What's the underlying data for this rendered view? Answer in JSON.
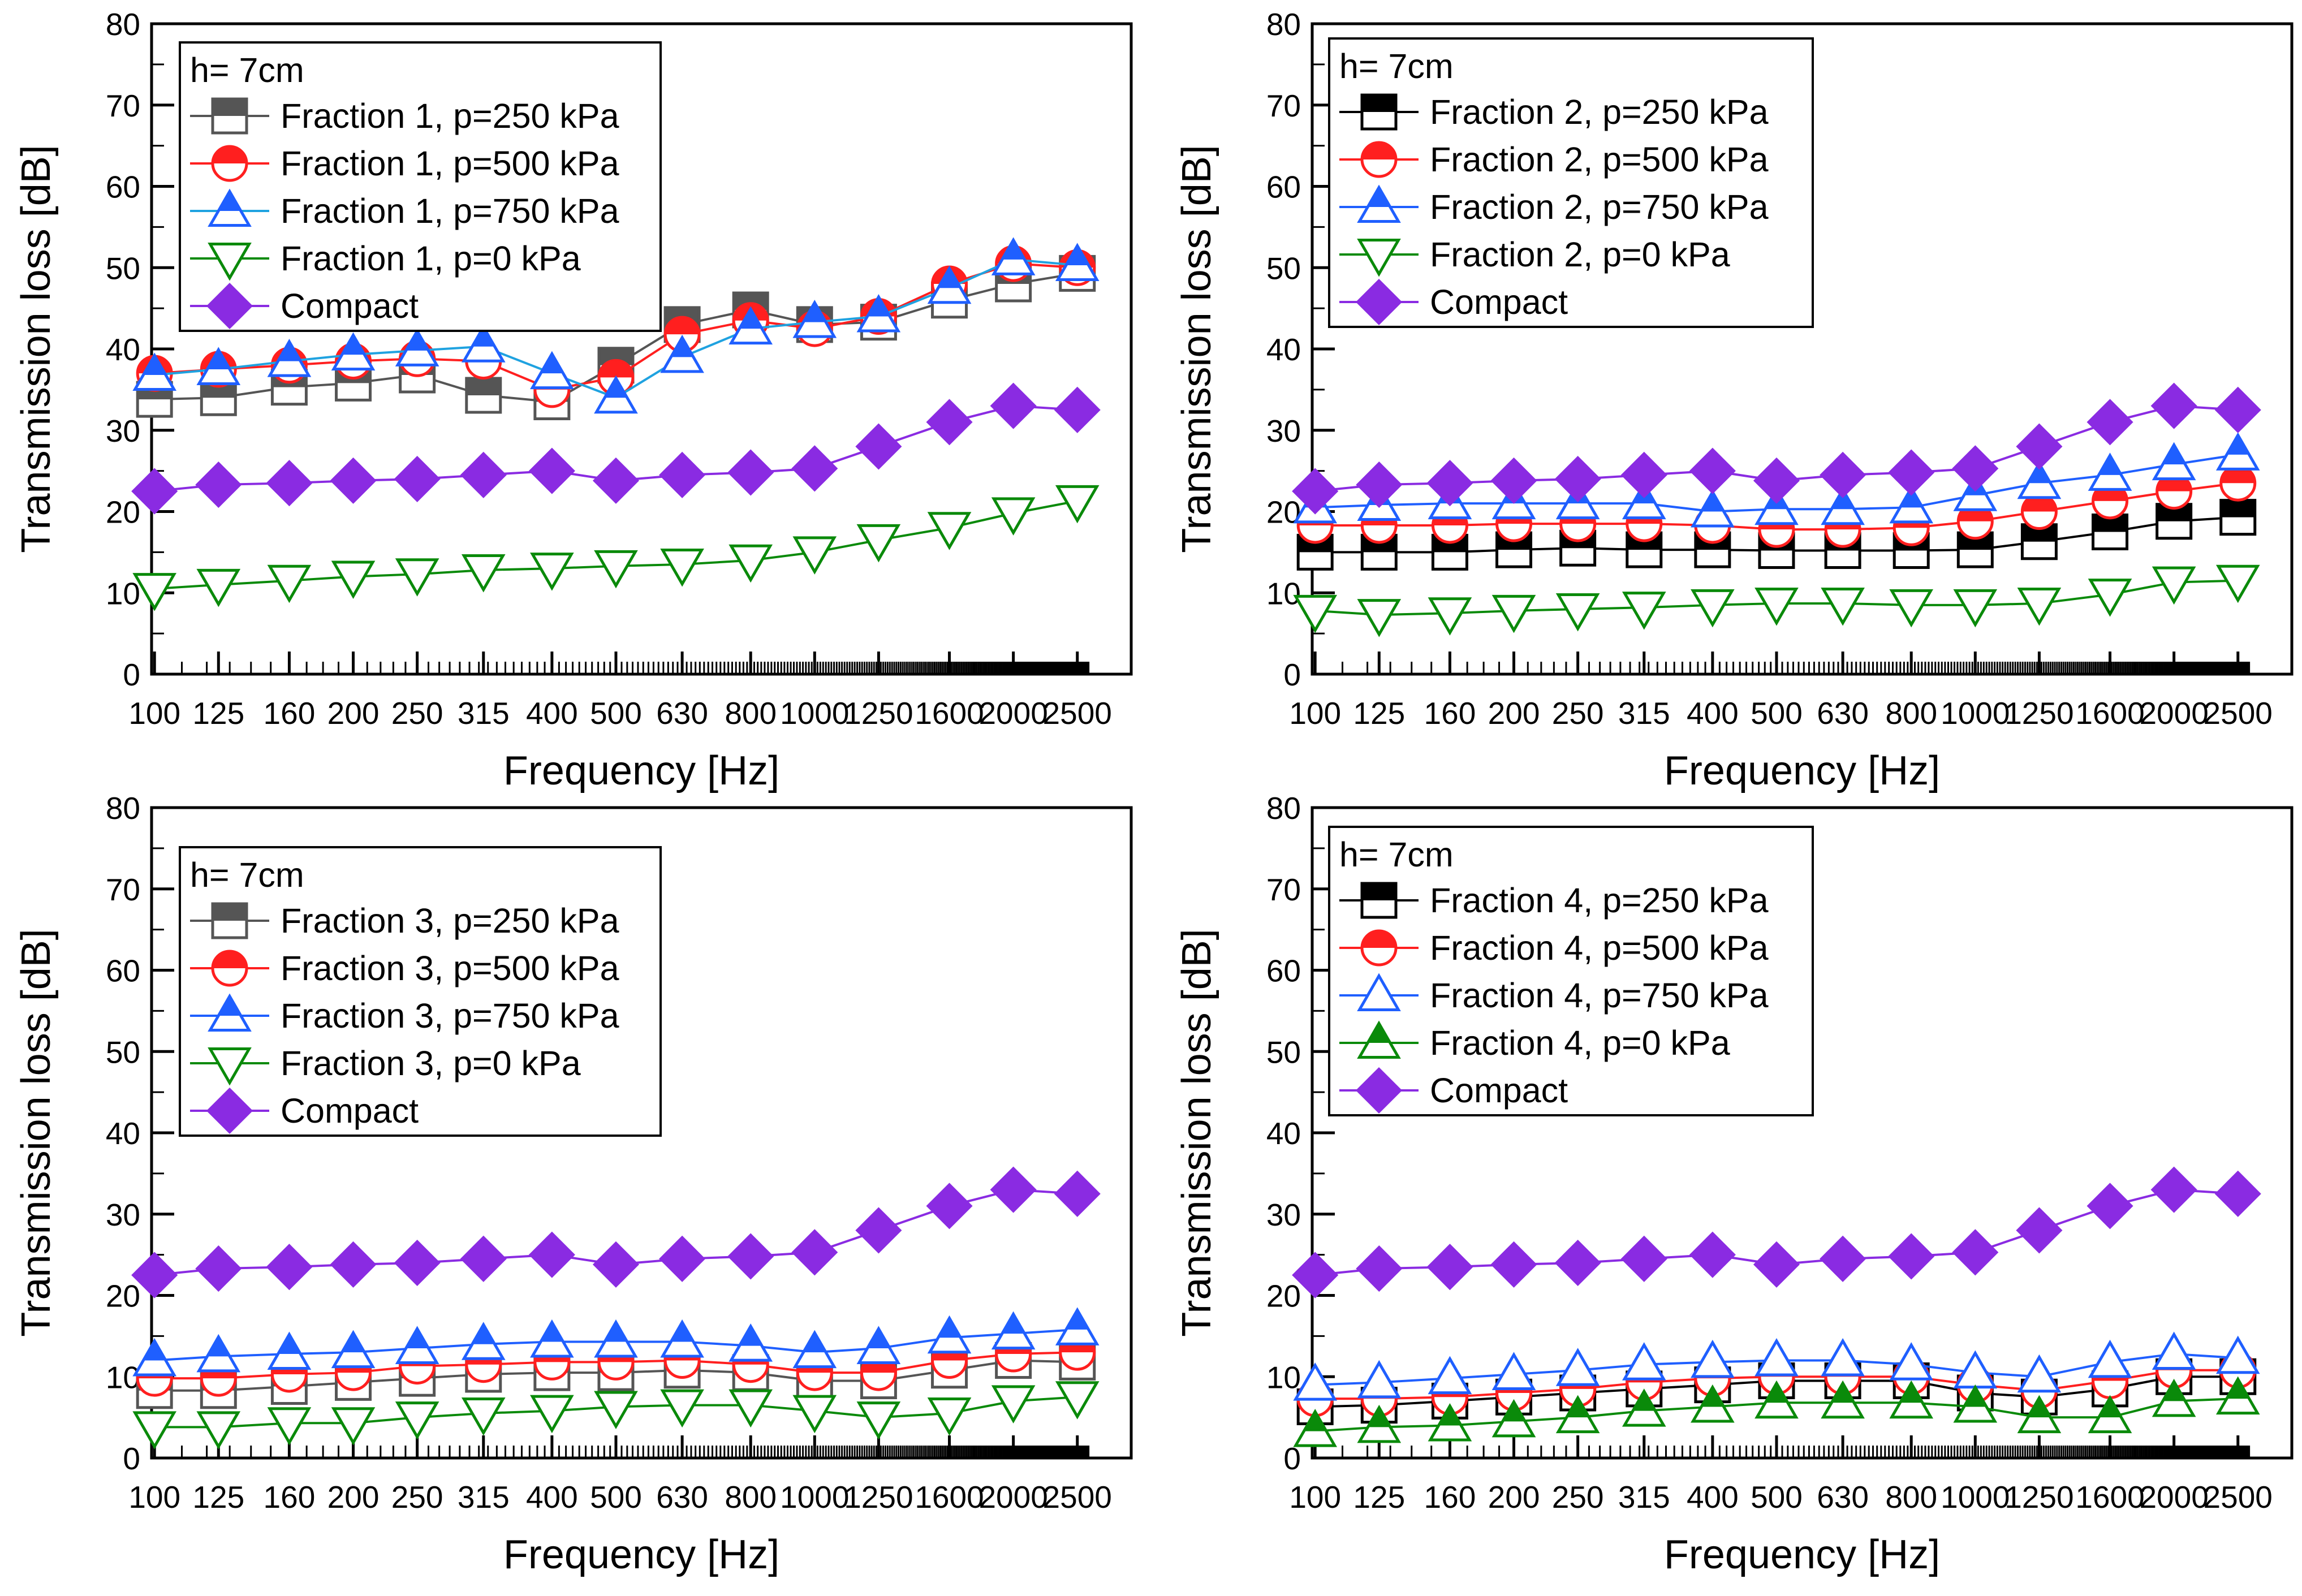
{
  "chart_data": [
    {
      "type": "line",
      "panel": "top-left",
      "xlabel": "Frequency [Hz]",
      "ylabel": "Transmission loss [dB]",
      "x_scale": "log",
      "categories": [
        "100",
        "125",
        "160",
        "200",
        "250",
        "315",
        "400",
        "500",
        "630",
        "800",
        "1000",
        "1250",
        "1600",
        "2000",
        "2500"
      ],
      "ylim": [
        0,
        80
      ],
      "yticks": [
        "0",
        "10",
        "20",
        "30",
        "40",
        "50",
        "60",
        "70",
        "80"
      ],
      "legend": {
        "position": "top-left",
        "title": "h= 7cm"
      },
      "series": [
        {
          "name": "Fraction 1, p=250 kPa",
          "color": "#555555",
          "marker": "square",
          "fill": "half",
          "values": [
            33.8,
            34.0,
            35.3,
            35.8,
            36.8,
            34.3,
            33.5,
            38.0,
            43.0,
            44.8,
            43.0,
            43.3,
            46.0,
            48.0,
            49.3
          ]
        },
        {
          "name": "Fraction 1, p=500 kPa",
          "color": "#ff1f1f",
          "marker": "circle",
          "fill": "half",
          "values": [
            37.0,
            37.5,
            38.0,
            38.5,
            38.8,
            38.5,
            35.0,
            36.5,
            41.8,
            43.5,
            42.5,
            44.0,
            48.0,
            50.5,
            50.0
          ]
        },
        {
          "name": "Fraction 1, p=750 kPa",
          "color": "#1f5fff",
          "marker": "triangle-up",
          "fill": "half",
          "line_color": "#1fa2e0",
          "values": [
            36.8,
            37.5,
            38.5,
            39.3,
            39.8,
            40.3,
            37.0,
            34.0,
            39.0,
            42.5,
            43.3,
            44.0,
            47.5,
            51.0,
            50.3
          ]
        },
        {
          "name": "Fraction 1, p=0 kPa",
          "color": "#0a8a0a",
          "marker": "triangle-down",
          "fill": "none",
          "values": [
            10.5,
            11.0,
            11.5,
            12.0,
            12.3,
            12.8,
            13.0,
            13.3,
            13.5,
            14.0,
            15.0,
            16.5,
            18.0,
            19.8,
            21.3
          ]
        },
        {
          "name": "Compact",
          "color": "#8a2be2",
          "marker": "diamond",
          "fill": "full",
          "values": [
            22.5,
            23.3,
            23.5,
            23.8,
            24.0,
            24.5,
            25.0,
            23.8,
            24.5,
            24.8,
            25.3,
            28.0,
            31.0,
            33.0,
            32.5
          ]
        }
      ]
    },
    {
      "type": "line",
      "panel": "top-right",
      "xlabel": "Frequency [Hz]",
      "ylabel": "Transmission loss [dB]",
      "x_scale": "log",
      "categories": [
        "100",
        "125",
        "160",
        "200",
        "250",
        "315",
        "400",
        "500",
        "630",
        "800",
        "1000",
        "1250",
        "1600",
        "2000",
        "2500"
      ],
      "ylim": [
        0,
        80
      ],
      "yticks": [
        "0",
        "10",
        "20",
        "30",
        "40",
        "50",
        "60",
        "70",
        "80"
      ],
      "legend": {
        "position": "top-left",
        "title": "h= 7cm"
      },
      "series": [
        {
          "name": "Fraction 2, p=250 kPa",
          "color": "#000000",
          "marker": "square",
          "fill": "half",
          "values": [
            15.0,
            15.0,
            15.0,
            15.3,
            15.5,
            15.3,
            15.3,
            15.2,
            15.2,
            15.2,
            15.3,
            16.3,
            17.5,
            18.8,
            19.3
          ]
        },
        {
          "name": "Fraction 2, p=500 kPa",
          "color": "#ff1f1f",
          "marker": "circle",
          "fill": "half",
          "values": [
            18.3,
            18.3,
            18.3,
            18.5,
            18.5,
            18.5,
            18.3,
            17.8,
            17.8,
            18.0,
            18.8,
            20.0,
            21.3,
            22.5,
            23.5
          ]
        },
        {
          "name": "Fraction 2, p=750 kPa",
          "color": "#1f5fff",
          "marker": "triangle-up",
          "fill": "half",
          "values": [
            20.5,
            20.8,
            21.0,
            21.0,
            21.0,
            21.0,
            20.0,
            20.3,
            20.3,
            20.5,
            22.0,
            23.5,
            24.5,
            25.8,
            27.0
          ]
        },
        {
          "name": "Fraction 2, p=0 kPa",
          "color": "#0a8a0a",
          "marker": "triangle-down",
          "fill": "none",
          "values": [
            7.8,
            7.3,
            7.5,
            7.8,
            8.0,
            8.2,
            8.5,
            8.7,
            8.7,
            8.5,
            8.5,
            8.7,
            9.8,
            11.3,
            11.5
          ]
        },
        {
          "name": "Compact",
          "color": "#8a2be2",
          "marker": "diamond",
          "fill": "full",
          "values": [
            22.5,
            23.3,
            23.5,
            23.8,
            24.0,
            24.5,
            25.0,
            23.8,
            24.5,
            24.8,
            25.3,
            28.0,
            31.0,
            33.0,
            32.5
          ]
        }
      ]
    },
    {
      "type": "line",
      "panel": "bottom-left",
      "xlabel": "Frequency [Hz]",
      "ylabel": "Transmission loss [dB]",
      "x_scale": "log",
      "categories": [
        "100",
        "125",
        "160",
        "200",
        "250",
        "315",
        "400",
        "500",
        "630",
        "800",
        "1000",
        "1250",
        "1600",
        "2000",
        "2500"
      ],
      "ylim": [
        0,
        80
      ],
      "yticks": [
        "0",
        "10",
        "20",
        "30",
        "40",
        "50",
        "60",
        "70",
        "80"
      ],
      "legend": {
        "position": "top-left",
        "title": "h= 7cm"
      },
      "series": [
        {
          "name": "Fraction 3, p=250 kPa",
          "color": "#555555",
          "marker": "square",
          "fill": "half",
          "values": [
            8.3,
            8.3,
            8.8,
            9.3,
            9.8,
            10.3,
            10.5,
            10.5,
            10.8,
            10.5,
            9.5,
            9.5,
            10.8,
            12.0,
            11.8
          ]
        },
        {
          "name": "Fraction 3, p=500 kPa",
          "color": "#ff1f1f",
          "marker": "circle",
          "fill": "half",
          "values": [
            9.8,
            9.8,
            10.3,
            10.5,
            11.3,
            11.5,
            11.8,
            11.8,
            12.0,
            11.5,
            10.5,
            10.5,
            12.0,
            12.8,
            13.0
          ]
        },
        {
          "name": "Fraction 3, p=750 kPa",
          "color": "#1f5fff",
          "marker": "triangle-up",
          "fill": "half",
          "values": [
            12.0,
            12.5,
            12.8,
            13.0,
            13.5,
            14.0,
            14.3,
            14.3,
            14.3,
            13.8,
            13.0,
            13.5,
            14.8,
            15.3,
            15.8
          ]
        },
        {
          "name": "Fraction 3, p=0 kPa",
          "color": "#0a8a0a",
          "marker": "triangle-down",
          "fill": "none",
          "values": [
            3.8,
            3.8,
            4.3,
            4.3,
            5.0,
            5.5,
            5.8,
            6.3,
            6.5,
            6.5,
            5.8,
            5.0,
            5.5,
            7.0,
            7.5
          ]
        },
        {
          "name": "Compact",
          "color": "#8a2be2",
          "marker": "diamond",
          "fill": "full",
          "values": [
            22.5,
            23.3,
            23.5,
            23.8,
            24.0,
            24.5,
            25.0,
            23.8,
            24.5,
            24.8,
            25.3,
            28.0,
            31.0,
            33.0,
            32.5
          ]
        }
      ]
    },
    {
      "type": "line",
      "panel": "bottom-right",
      "xlabel": "Frequency [Hz]",
      "ylabel": "Transmission loss [dB]",
      "x_scale": "log",
      "categories": [
        "100",
        "125",
        "160",
        "200",
        "250",
        "315",
        "400",
        "500",
        "630",
        "800",
        "1000",
        "1250",
        "1600",
        "2000",
        "2500"
      ],
      "ylim": [
        0,
        80
      ],
      "yticks": [
        "0",
        "10",
        "20",
        "30",
        "40",
        "50",
        "60",
        "70",
        "80"
      ],
      "legend": {
        "position": "top-left",
        "title": "h= 7cm"
      },
      "series": [
        {
          "name": "Fraction 4, p=250 kPa",
          "color": "#000000",
          "marker": "square",
          "fill": "half",
          "values": [
            6.3,
            6.5,
            7.0,
            7.5,
            8.0,
            8.5,
            9.0,
            9.5,
            9.5,
            9.5,
            8.0,
            7.5,
            8.5,
            10.0,
            10.0
          ]
        },
        {
          "name": "Fraction 4, p=500 kPa",
          "color": "#ff1f1f",
          "marker": "circle",
          "fill": "half",
          "values": [
            7.3,
            7.3,
            7.5,
            8.0,
            8.5,
            9.3,
            9.8,
            10.0,
            10.0,
            10.0,
            9.0,
            8.3,
            9.5,
            10.8,
            10.8
          ]
        },
        {
          "name": "Fraction 4, p=750 kPa",
          "color": "#1f5fff",
          "marker": "triangle-up",
          "fill": "none",
          "values": [
            9.0,
            9.3,
            9.8,
            10.3,
            10.8,
            11.5,
            11.8,
            12.0,
            12.0,
            11.5,
            10.5,
            10.0,
            11.8,
            12.8,
            12.3
          ]
        },
        {
          "name": "Fraction 4, p=0 kPa",
          "color": "#0a8a0a",
          "marker": "triangle-up",
          "fill": "half",
          "values": [
            3.3,
            3.8,
            4.0,
            4.5,
            5.0,
            5.8,
            6.3,
            6.8,
            6.8,
            6.8,
            6.3,
            5.0,
            5.0,
            7.0,
            7.3
          ]
        },
        {
          "name": "Compact",
          "color": "#8a2be2",
          "marker": "diamond",
          "fill": "full",
          "values": [
            22.5,
            23.3,
            23.5,
            23.8,
            24.0,
            24.5,
            25.0,
            23.8,
            24.5,
            24.8,
            25.3,
            28.0,
            31.0,
            33.0,
            32.5
          ]
        }
      ]
    }
  ]
}
